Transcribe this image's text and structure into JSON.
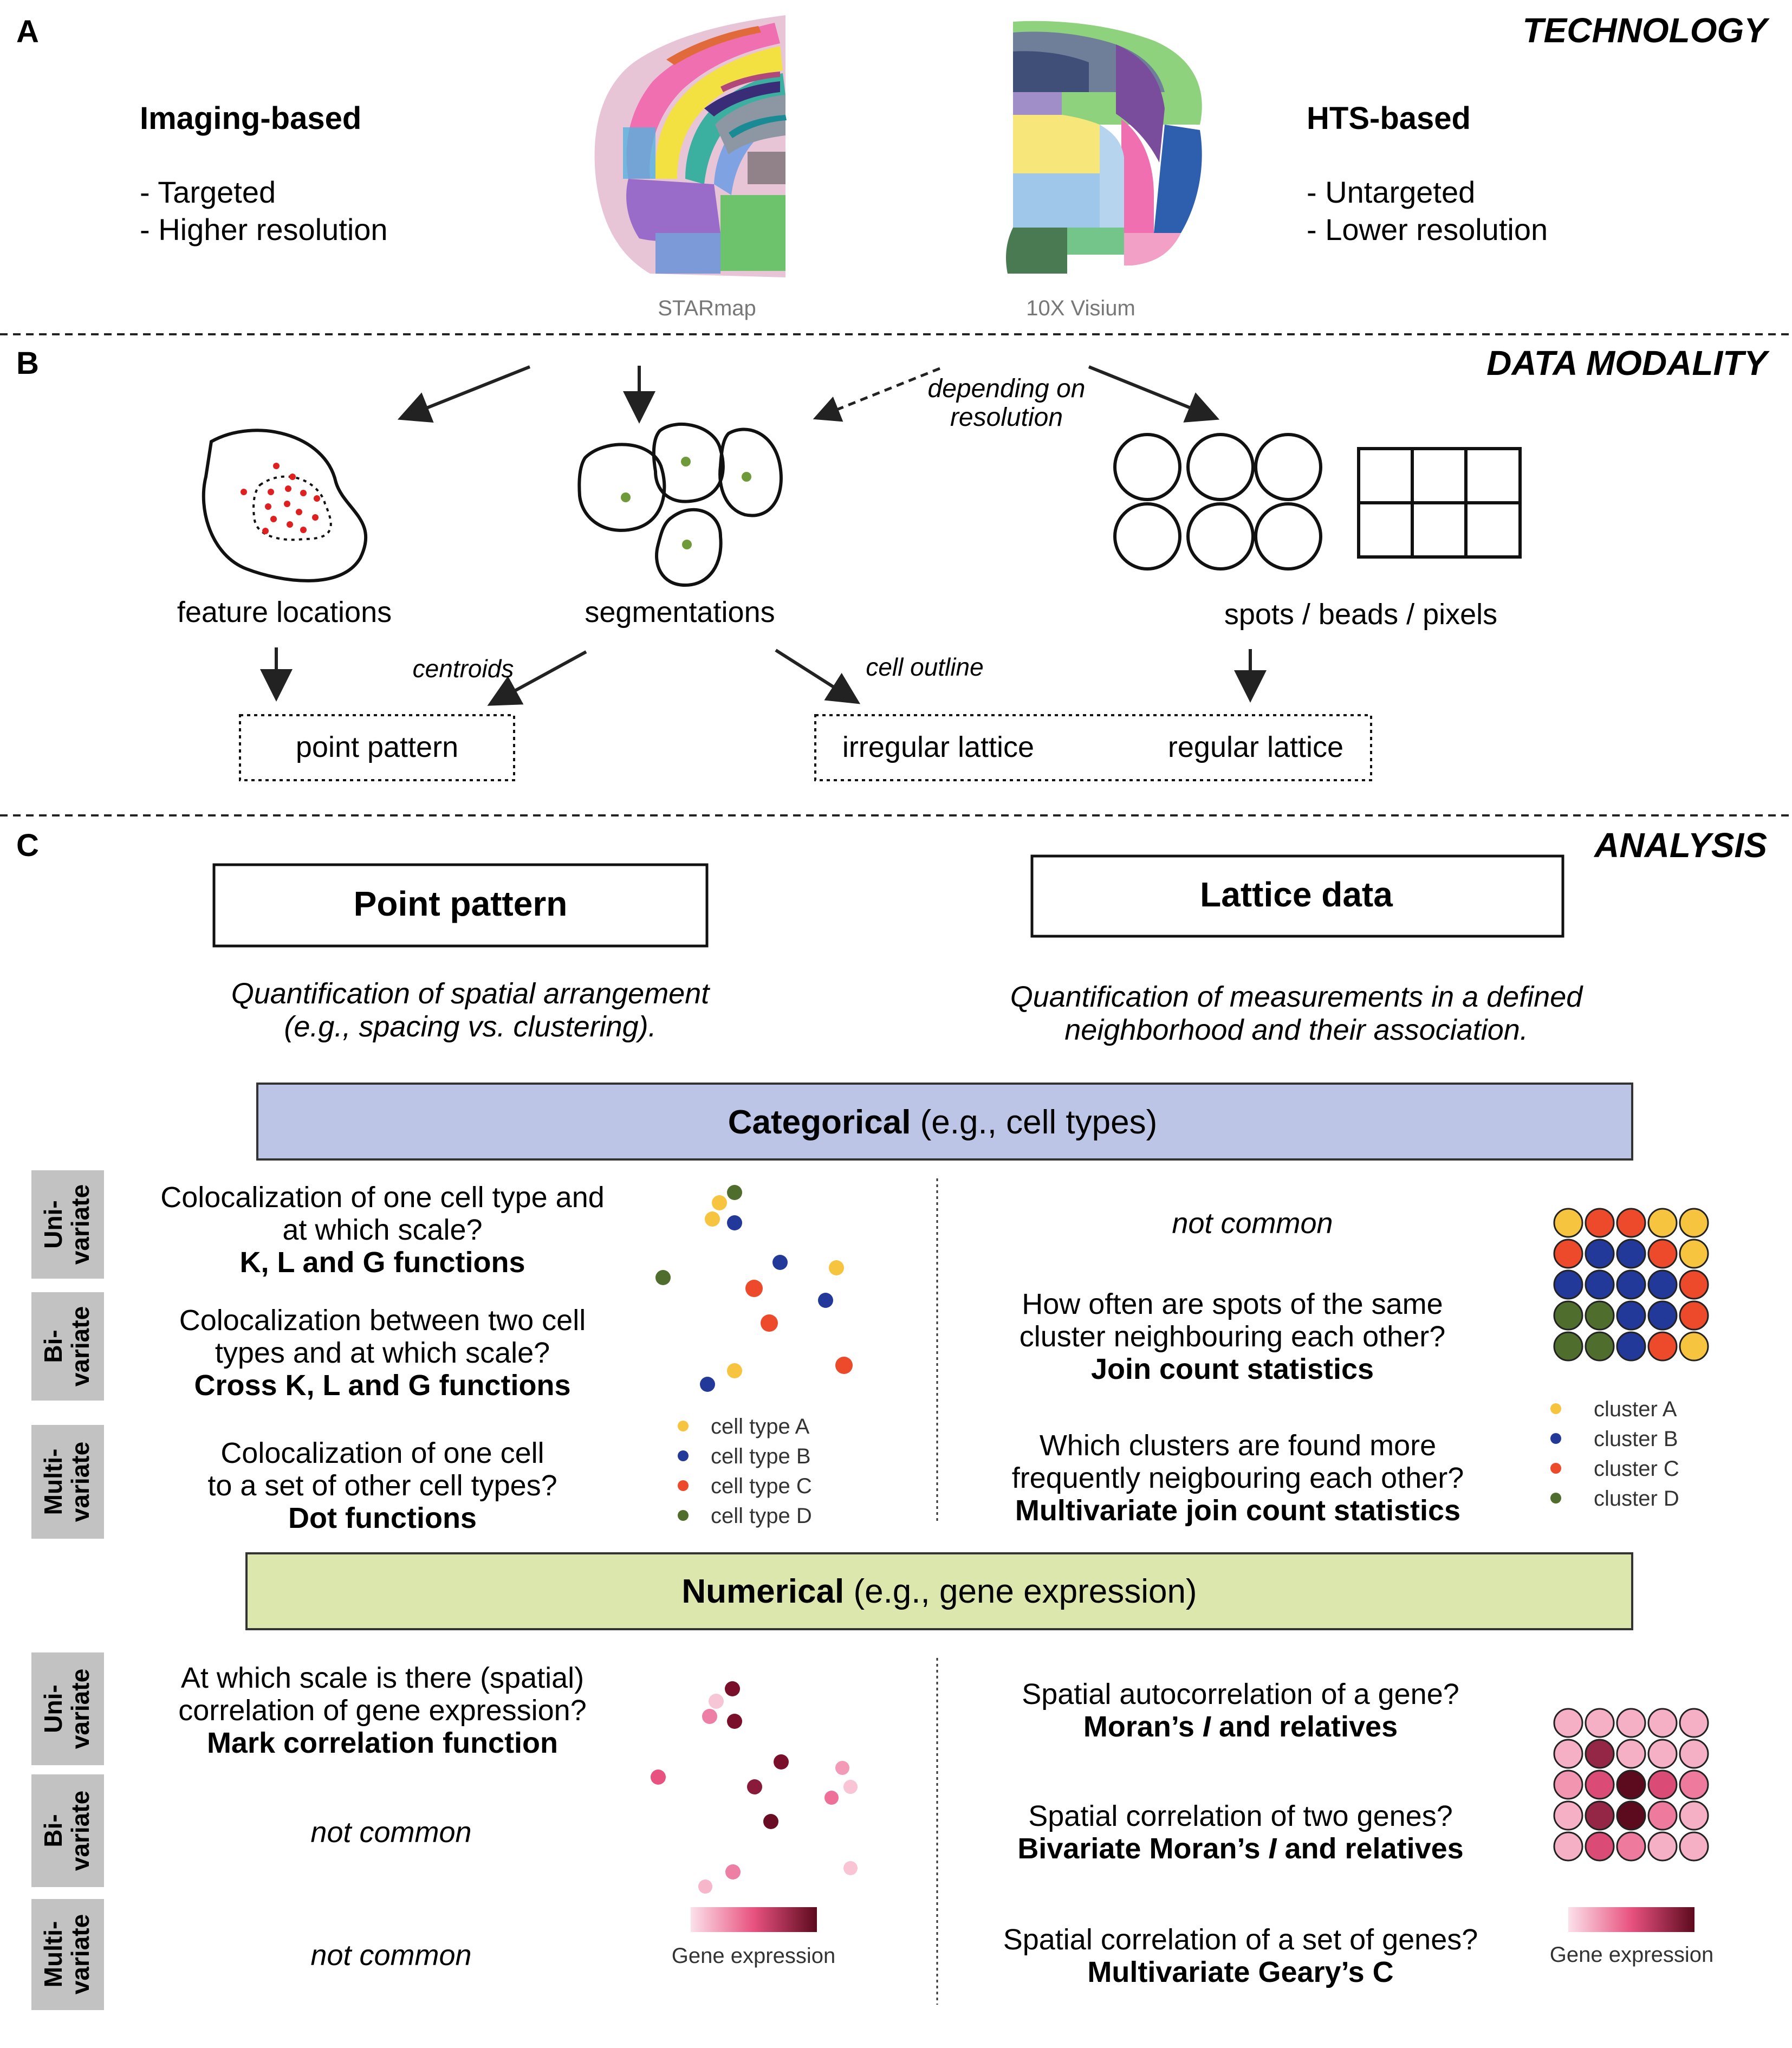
{
  "colors": {
    "categorical_fill": "#bcc5e6",
    "numerical_fill": "#dbe7ad",
    "row_label_fill": "#c2c2c2",
    "cell_type_A": "#f7c43f",
    "cell_type_B": "#23399a",
    "cell_type_C": "#ec4a2a",
    "cell_type_D": "#4f6d2c",
    "feature_point": "#e02020",
    "centroid": "#6e9a3a",
    "expr_low": "#f7d0dc",
    "expr_high": "#5c0a1e"
  },
  "panel_a": {
    "letter": "A",
    "heading": "TECHNOLOGY",
    "left": {
      "title": "Imaging-based",
      "items": [
        "- Targeted",
        "- Higher resolution"
      ]
    },
    "right": {
      "title": "HTS-based",
      "items": [
        "- Untargeted",
        "- Lower resolution"
      ]
    },
    "image1_caption": "STARmap",
    "image2_caption": "10X Visium"
  },
  "panel_b": {
    "letter": "B",
    "heading": "DATA MODALITY",
    "note_line1": "depending on",
    "note_line2": "resolution",
    "feature_locations": "feature locations",
    "segmentations": "segmentations",
    "spots": "spots / beads / pixels",
    "centroids": "centroids",
    "cell_outline": "cell outline",
    "point_pattern": "point pattern",
    "irregular_lattice": "irregular lattice",
    "regular_lattice": "regular lattice"
  },
  "panel_c": {
    "letter": "C",
    "heading": "ANALYSIS",
    "point_pattern_title": "Point pattern",
    "point_pattern_desc1": "Quantification of spatial arrangement",
    "point_pattern_desc2": "(e.g., spacing vs. clustering).",
    "lattice_title": "Lattice data",
    "lattice_desc1": "Quantification of measurements in a defined",
    "lattice_desc2": "neighborhood and their association.",
    "categorical_bold": "Categorical",
    "categorical_rest": " (e.g., cell types)",
    "numerical_bold": "Numerical",
    "numerical_rest": " (e.g., gene expression)",
    "row_labels": {
      "uni_a": "Uni-",
      "uni_b": "variate",
      "bi_a": "Bi-",
      "bi_b": "variate",
      "multi_a": "Multi-",
      "multi_b": "variate"
    },
    "categorical": {
      "uni_point_1": "Colocalization of one cell type and",
      "uni_point_2": "at which scale?",
      "uni_point_3": "K, L and G functions",
      "bi_point_1": "Colocalization between two cell",
      "bi_point_2": "types and at which scale?",
      "bi_point_3": "Cross K, L and G functions",
      "multi_point_1": "Colocalization of one cell",
      "multi_point_2": "to a set of other cell types?",
      "multi_point_3": "Dot functions",
      "uni_lattice": "not common",
      "bi_lattice_1": "How often are spots of the same",
      "bi_lattice_2": "cluster neighbouring each other?",
      "bi_lattice_3": "Join count statistics",
      "multi_lattice_1": "Which clusters are found more",
      "multi_lattice_2": "frequently neigbouring each other?",
      "multi_lattice_3": "Multivariate join count statistics",
      "legend_point": [
        "cell type A",
        "cell type B",
        "cell type C",
        "cell type D"
      ],
      "legend_lattice": [
        "cluster A",
        "cluster B",
        "cluster C",
        "cluster D"
      ],
      "lattice_grid": [
        [
          "A",
          "C",
          "C",
          "A",
          "A"
        ],
        [
          "C",
          "B",
          "B",
          "C",
          "A"
        ],
        [
          "B",
          "B",
          "B",
          "B",
          "C"
        ],
        [
          "D",
          "D",
          "B",
          "B",
          "C"
        ],
        [
          "D",
          "D",
          "B",
          "C",
          "A"
        ]
      ]
    },
    "numerical": {
      "uni_point_1": "At which scale is there (spatial)",
      "uni_point_2": "correlation of gene expression?",
      "uni_point_3": "Mark correlation function",
      "bi_point": "not common",
      "multi_point": "not common",
      "uni_lattice_1": "Spatial autocorrelation of a gene?",
      "uni_lattice_2a": "Moran’s ",
      "uni_lattice_2b": "I",
      "uni_lattice_2c": " and relatives",
      "bi_lattice_1": "Spatial correlation of two genes?",
      "bi_lattice_2a": "Bivariate Moran’s ",
      "bi_lattice_2b": "I",
      "bi_lattice_2c": " and relatives",
      "multi_lattice_1": "Spatial correlation of a set of genes?",
      "multi_lattice_2": "Multivariate Geary’s C",
      "gene_expression_label_1": "Gene expression",
      "gene_expression_label_2": "Gene expression",
      "lattice_levels": [
        [
          0.15,
          0.15,
          0.15,
          0.15,
          0.15
        ],
        [
          0.15,
          0.8,
          0.15,
          0.15,
          0.15
        ],
        [
          0.25,
          0.55,
          1.0,
          0.55,
          0.35
        ],
        [
          0.15,
          0.8,
          1.0,
          0.35,
          0.15
        ],
        [
          0.15,
          0.55,
          0.35,
          0.15,
          0.15
        ]
      ]
    }
  }
}
